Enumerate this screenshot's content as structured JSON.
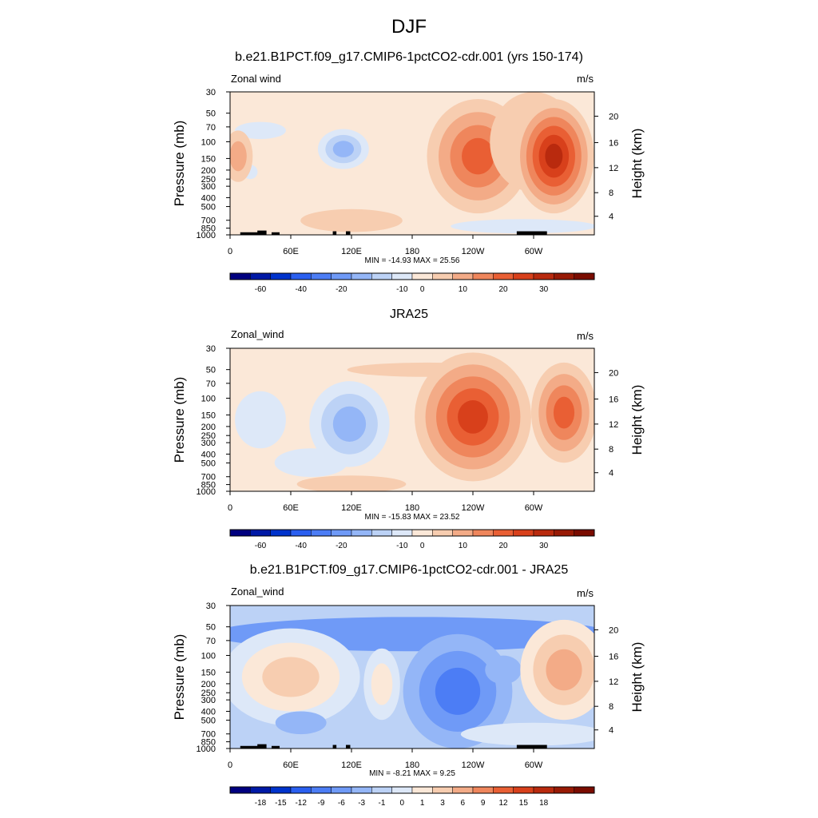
{
  "main_title": "DJF",
  "panels": [
    {
      "title": "b.e21.B1PCT.f09_g17.CMIP6-1pctCO2-cdr.001 (yrs 150-174)",
      "var_label": "Zonal wind",
      "units": "m/s",
      "stats": "MIN = -14.93  MAX =  25.56"
    },
    {
      "title": "JRA25",
      "var_label": "Zonal_wind",
      "units": "m/s",
      "stats": "MIN = -15.83  MAX =  23.52"
    },
    {
      "title": "b.e21.B1PCT.f09_g17.CMIP6-1pctCO2-cdr.001 - JRA25",
      "var_label": "Zonal_wind",
      "units": "m/s",
      "stats": "MIN = -8.21  MAX =  9.25"
    }
  ],
  "axes": {
    "ylabel_left": "Pressure (mb)",
    "ylabel_right": "Height (km)",
    "xticks": [
      "0",
      "60E",
      "120E",
      "180",
      "120W",
      "60W"
    ],
    "pressure_ticks": [
      "30",
      "50",
      "70",
      "100",
      "150",
      "200",
      "250",
      "300",
      "400",
      "500",
      "700",
      "850",
      "1000"
    ],
    "height_ticks": [
      "20",
      "16",
      "12",
      "8",
      "4"
    ]
  },
  "colorbars": {
    "fields_labels": [
      "-60",
      "-40",
      "-20",
      "-10",
      "0",
      "10",
      "20",
      "30"
    ],
    "diff_labels": [
      "-18",
      "-15",
      "-12",
      "-9",
      "-6",
      "-3",
      "-1",
      "0",
      "1",
      "3",
      "6",
      "9",
      "12",
      "15",
      "18"
    ],
    "colors": [
      "#00007f",
      "#0019a6",
      "#0033cc",
      "#2a5ff0",
      "#4c7df5",
      "#6f9af7",
      "#94b6f7",
      "#bcd2f6",
      "#dde8f8",
      "#fbe8d8",
      "#f7cdb0",
      "#f3ab87",
      "#ef865c",
      "#e95f34",
      "#d8401b",
      "#b92a0e",
      "#981a05",
      "#7a0c00"
    ]
  },
  "chart_data": [
    {
      "type": "heatmap",
      "title": "b.e21.B1PCT.f09_g17.CMIP6-1pctCO2-cdr.001 (yrs 150-174)",
      "variable": "Zonal wind",
      "units": "m/s",
      "x": "longitude 0-360",
      "y": "pressure 1000-30 mb",
      "min": -14.93,
      "max": 25.56,
      "features": [
        {
          "kind": "jet",
          "lon": 110,
          "p": 150,
          "value": -10
        },
        {
          "kind": "jet",
          "lon": 240,
          "p": 150,
          "value": 15
        },
        {
          "kind": "jet",
          "lon": 300,
          "p": 150,
          "value": 20
        },
        {
          "kind": "jet",
          "lon": 320,
          "p": 150,
          "value": 25
        },
        {
          "kind": "jet",
          "lon": 0,
          "p": 150,
          "value": 5
        },
        {
          "kind": "low-level",
          "lon": 120,
          "p": 700,
          "value": 3
        }
      ]
    },
    {
      "type": "heatmap",
      "title": "JRA25",
      "variable": "Zonal_wind",
      "units": "m/s",
      "x": "longitude 0-360",
      "y": "pressure 1000-30 mb",
      "min": -15.83,
      "max": 23.52,
      "features": [
        {
          "kind": "jet",
          "lon": 115,
          "p": 150,
          "value": -8
        },
        {
          "kind": "jet",
          "lon": 235,
          "p": 150,
          "value": 22
        },
        {
          "kind": "jet",
          "lon": 330,
          "p": 150,
          "value": 15
        },
        {
          "kind": "easterly",
          "lon": 30,
          "p": 300,
          "value": -2
        }
      ]
    },
    {
      "type": "heatmap",
      "title": "b.e21.B1PCT.f09_g17.CMIP6-1pctCO2-cdr.001 - JRA25",
      "variable": "Zonal_wind",
      "units": "m/s",
      "x": "longitude 0-360",
      "y": "pressure 1000-30 mb",
      "min": -8.21,
      "max": 9.25,
      "features": [
        {
          "kind": "band",
          "lon": 180,
          "p": 55,
          "value": -4
        },
        {
          "kind": "minimum",
          "lon": 225,
          "p": 150,
          "value": -8
        },
        {
          "kind": "maximum",
          "lon": 330,
          "p": 150,
          "value": 8
        },
        {
          "kind": "region",
          "lon": 40,
          "p": 250,
          "value": 4
        }
      ]
    }
  ]
}
